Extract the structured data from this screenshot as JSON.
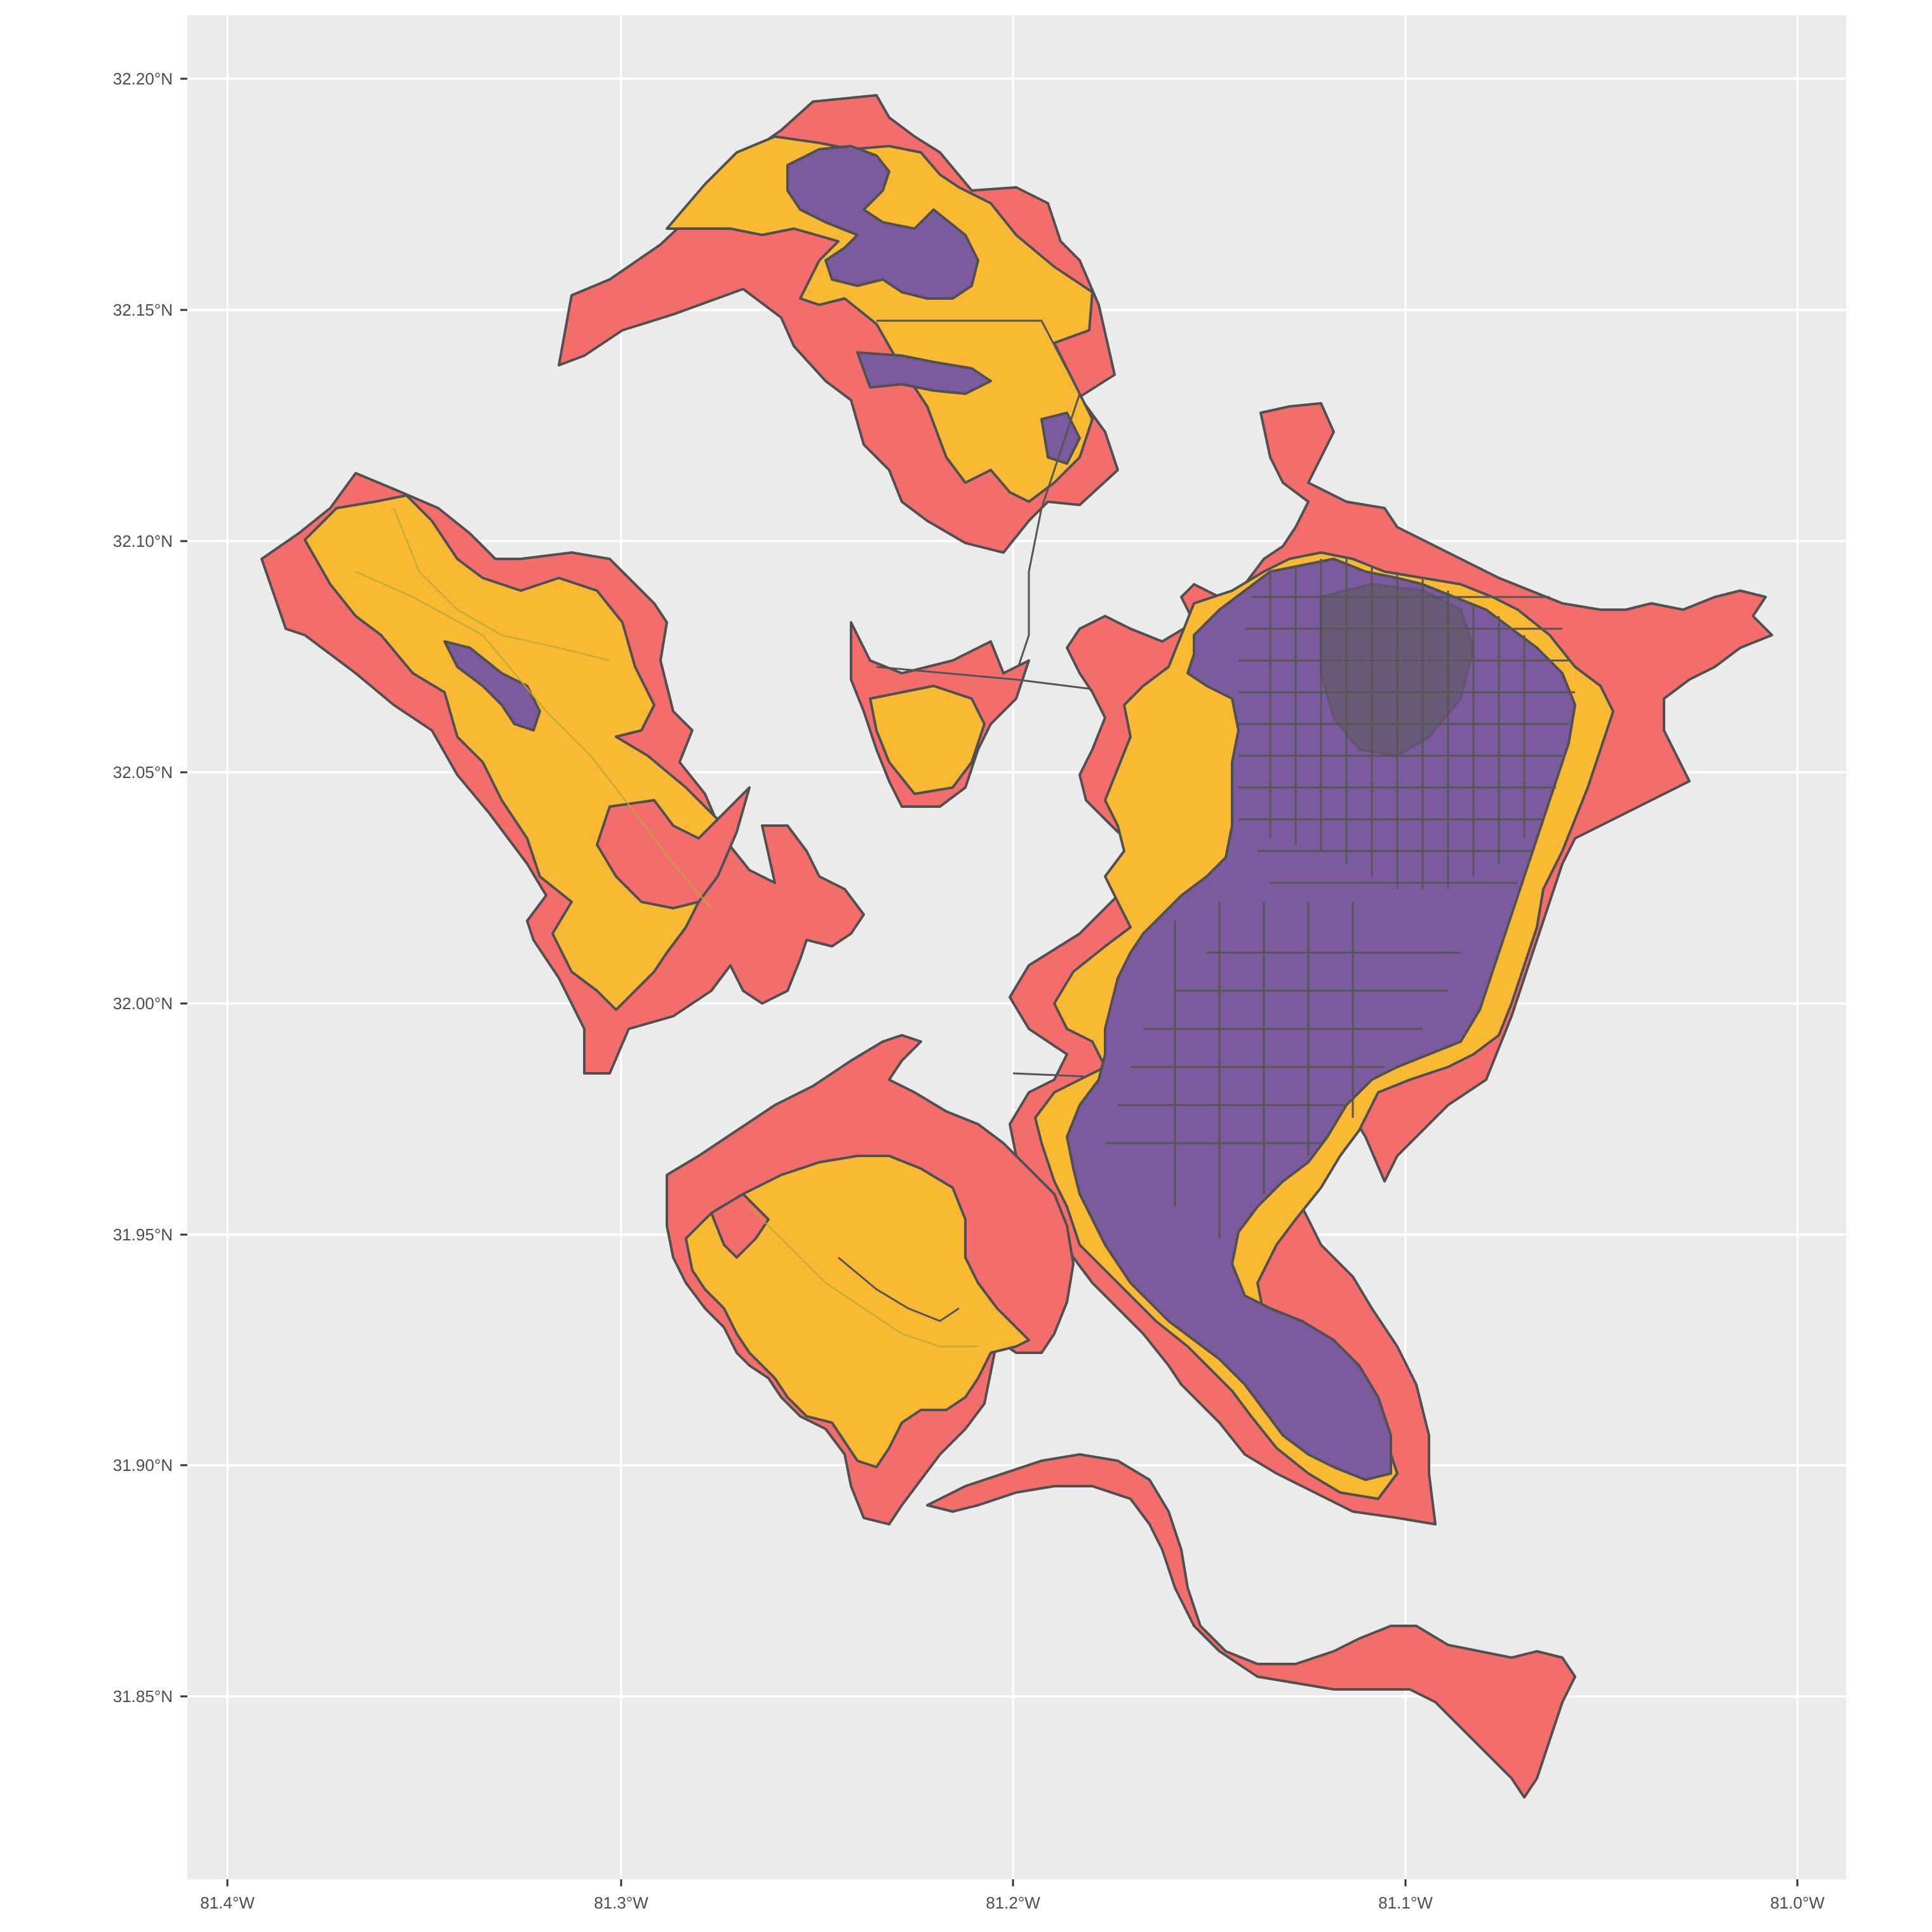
{
  "map": {
    "panel_background": "#EBEBEB",
    "grid_color": "#FFFFFF",
    "x_axis": {
      "ticks": [
        {
          "value": -81.4,
          "label": "81.4°W"
        },
        {
          "value": -81.3,
          "label": "81.3°W"
        },
        {
          "value": -81.2,
          "label": "81.2°W"
        },
        {
          "value": -81.1,
          "label": "81.1°W"
        },
        {
          "value": -81.0,
          "label": "81.0°W"
        }
      ],
      "range": [
        -81.405,
        -80.99
      ]
    },
    "y_axis": {
      "ticks": [
        {
          "value": 32.2,
          "label": "32.20°N"
        },
        {
          "value": 32.15,
          "label": "32.15°N"
        },
        {
          "value": 32.1,
          "label": "32.10°N"
        },
        {
          "value": 32.05,
          "label": "32.05°N"
        },
        {
          "value": 32.0,
          "label": "32.00°N"
        },
        {
          "value": 31.95,
          "label": "31.95°N"
        },
        {
          "value": 31.9,
          "label": "31.90°N"
        },
        {
          "value": 31.85,
          "label": "31.85°N"
        }
      ],
      "range": [
        31.81,
        32.215
      ]
    },
    "fill_classes": {
      "red": "#F46D6D",
      "yellow": "#F9B933",
      "purple": "#7C5A9E"
    },
    "border_color": "#505050",
    "legend": "none"
  }
}
